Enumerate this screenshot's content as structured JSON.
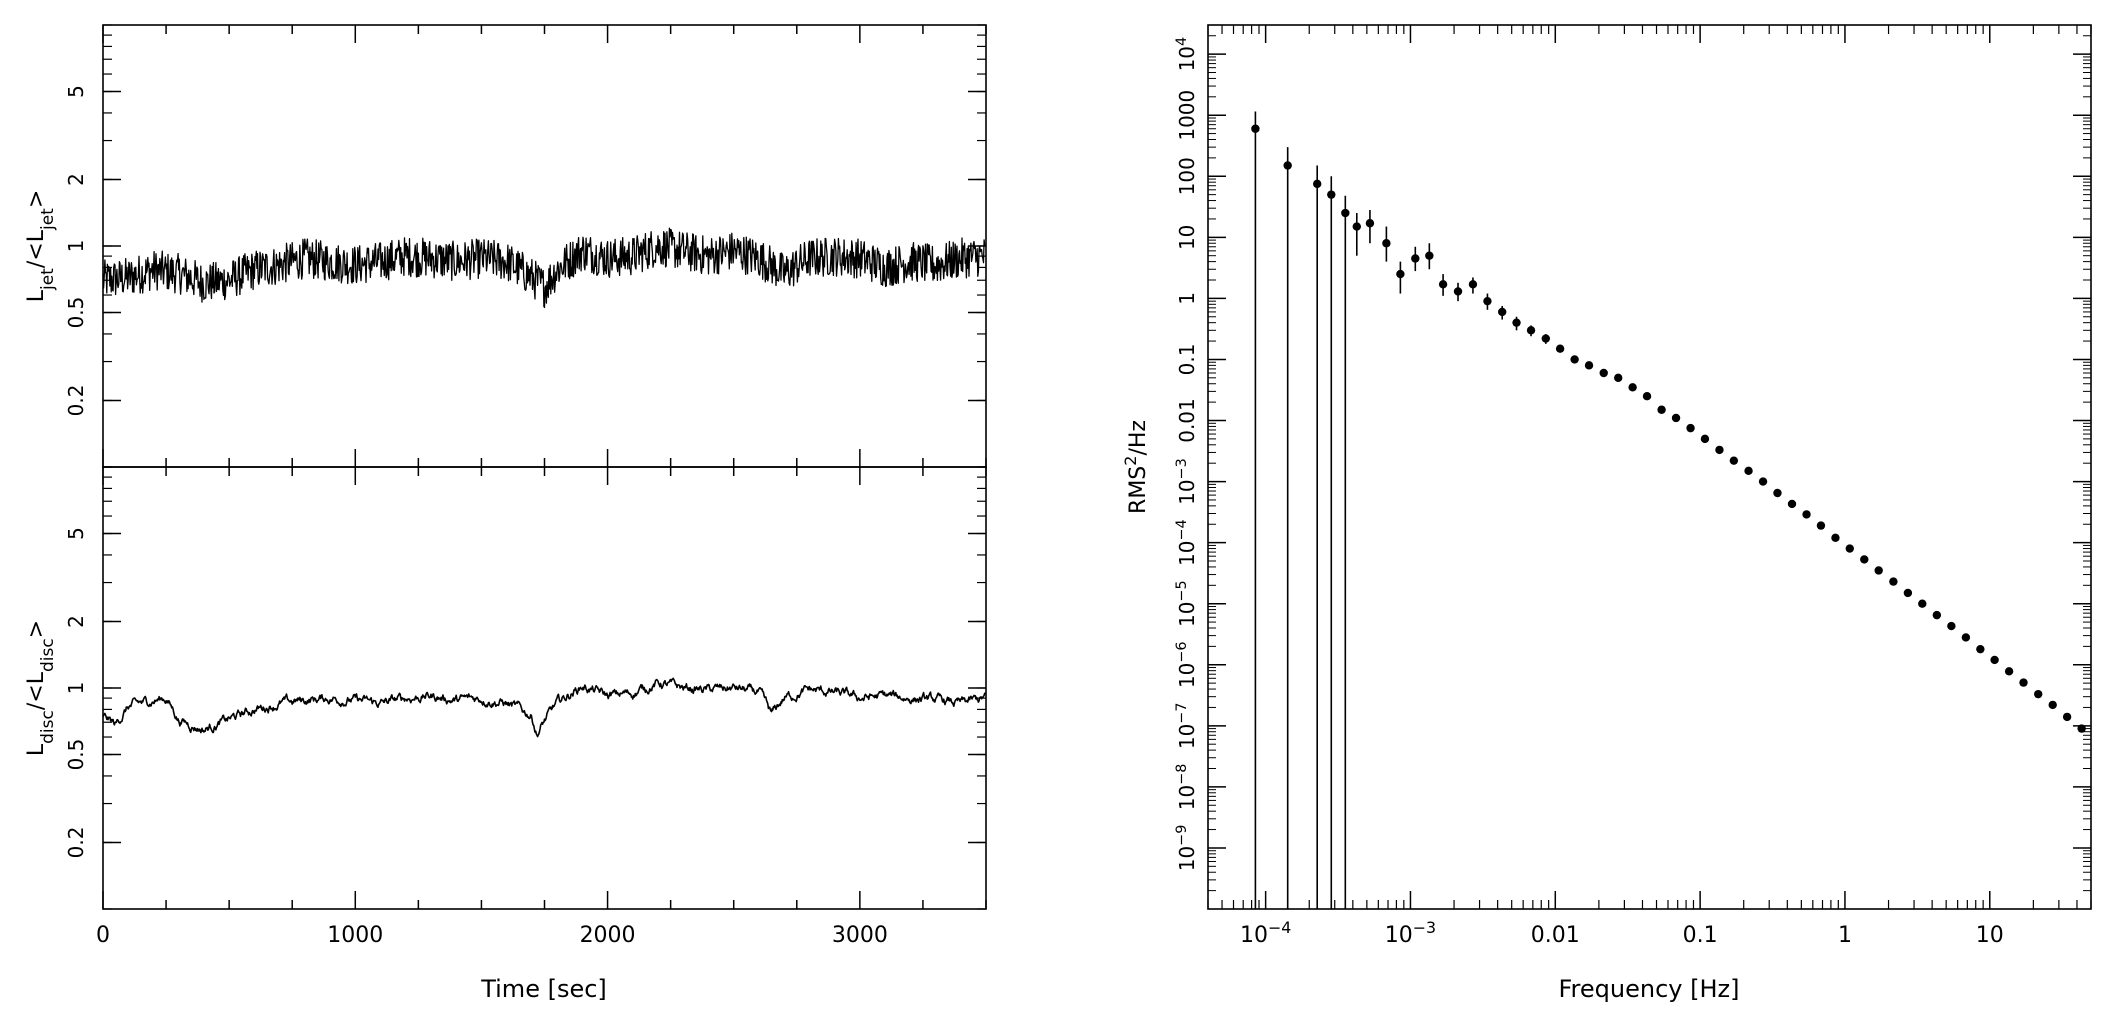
{
  "colors": {
    "ink": "#000000",
    "background": "#ffffff"
  },
  "left_panel": {
    "xlabel": "Time [sec]",
    "x_ticks": [
      "0",
      "1000",
      "2000",
      "3000"
    ],
    "top_ylabel_main": "L",
    "top_ylabel_sub1": "jet",
    "top_ylabel_mid": "/<L",
    "top_ylabel_sub2": "jet",
    "top_ylabel_end": ">",
    "bottom_ylabel_main": "L",
    "bottom_ylabel_sub1": "disc",
    "bottom_ylabel_mid": "/<L",
    "bottom_ylabel_sub2": "disc",
    "bottom_ylabel_end": ">",
    "y_ticks": [
      "0.2",
      "0.5",
      "1",
      "2",
      "5"
    ]
  },
  "right_panel": {
    "xlabel": "Frequency [Hz]",
    "ylabel_main": "RMS",
    "ylabel_sup": "2",
    "ylabel_end": "/Hz"
  },
  "chart_data": [
    {
      "type": "line",
      "panel": "top-left",
      "title": "",
      "xlabel": "",
      "ylabel": "Ljet/<Ljet>",
      "xlim": [
        0,
        3500
      ],
      "ylim": [
        0.1,
        10
      ],
      "y_scale": "log",
      "y_ticks": [
        0.2,
        0.5,
        1,
        2,
        5
      ],
      "series": [
        {
          "x": [
            0,
            100,
            200,
            300,
            400,
            500,
            600,
            700,
            800,
            900,
            1000,
            1100,
            1200,
            1300,
            1400,
            1500,
            1600,
            1700,
            1750,
            1800,
            1900,
            2000,
            2100,
            2200,
            2300,
            2400,
            2500,
            2600,
            2700,
            2800,
            2900,
            3000,
            3100,
            3200,
            3300,
            3400,
            3500
          ],
          "y": [
            0.7,
            0.72,
            0.78,
            0.75,
            0.68,
            0.7,
            0.78,
            0.82,
            0.88,
            0.85,
            0.82,
            0.85,
            0.9,
            0.88,
            0.85,
            0.88,
            0.85,
            0.72,
            0.65,
            0.78,
            0.95,
            0.88,
            0.9,
            1.0,
            0.95,
            0.9,
            0.95,
            0.88,
            0.75,
            0.88,
            0.9,
            0.88,
            0.8,
            0.85,
            0.82,
            0.88,
            0.9
          ],
          "noise_amplitude": "high"
        }
      ]
    },
    {
      "type": "line",
      "panel": "bottom-left",
      "title": "",
      "xlabel": "Time [sec]",
      "ylabel": "Ldisc/<Ldisc>",
      "xlim": [
        0,
        3500
      ],
      "ylim": [
        0.1,
        10
      ],
      "y_scale": "log",
      "y_ticks": [
        0.2,
        0.5,
        1,
        2,
        5
      ],
      "x_ticks": [
        0,
        1000,
        2000,
        3000
      ],
      "series": [
        {
          "x": [
            0,
            50,
            100,
            150,
            200,
            250,
            300,
            350,
            400,
            500,
            600,
            700,
            800,
            900,
            1000,
            1100,
            1200,
            1300,
            1400,
            1500,
            1600,
            1700,
            1720,
            1800,
            1900,
            2000,
            2100,
            2200,
            2300,
            2400,
            2500,
            2600,
            2650,
            2700,
            2800,
            2900,
            3000,
            3100,
            3200,
            3300,
            3400,
            3500
          ],
          "y": [
            0.75,
            0.68,
            0.82,
            0.85,
            0.88,
            0.9,
            0.72,
            0.68,
            0.65,
            0.72,
            0.8,
            0.85,
            0.88,
            0.9,
            0.88,
            0.85,
            0.9,
            0.92,
            0.88,
            0.9,
            0.85,
            0.75,
            0.62,
            0.85,
            1.02,
            0.92,
            0.95,
            1.05,
            1.0,
            0.98,
            1.0,
            0.95,
            0.75,
            0.9,
            0.98,
            0.95,
            0.9,
            0.92,
            0.9,
            0.88,
            0.85,
            0.9
          ]
        }
      ]
    },
    {
      "type": "scatter",
      "panel": "right",
      "title": "",
      "xlabel": "Frequency [Hz]",
      "ylabel": "RMS^2/Hz",
      "x_scale": "log",
      "y_scale": "log",
      "xlim": [
        4e-05,
        50
      ],
      "ylim": [
        1e-10,
        30000
      ],
      "x_ticks": [
        "10^-4",
        "10^-3",
        "0.01",
        "0.1",
        "1",
        "10"
      ],
      "y_ticks": [
        "10^-9",
        "10^-8",
        "10^-7",
        "10^-6",
        "10^-5",
        "10^-4",
        "10^-3",
        "0.01",
        "0.1",
        "1",
        "10",
        "100",
        "1000",
        "10^4"
      ],
      "series": [
        {
          "x": [
            8.5e-05,
            0.000142,
            0.000227,
            0.000284,
            0.000355,
            0.000426,
            0.000525,
            0.000682,
            0.000852,
            0.00108,
            0.00135,
            0.00168,
            0.00213,
            0.0027,
            0.0034,
            0.0043,
            0.0054,
            0.0068,
            0.0086,
            0.0108,
            0.0136,
            0.0171,
            0.0216,
            0.0272,
            0.0342,
            0.043,
            0.0542,
            0.0682,
            0.0859,
            0.108,
            0.136,
            0.171,
            0.216,
            0.272,
            0.342,
            0.431,
            0.543,
            0.683,
            0.86,
            1.08,
            1.36,
            1.71,
            2.16,
            2.72,
            3.42,
            4.31,
            5.43,
            6.84,
            8.61,
            10.8,
            13.6,
            17.1,
            21.6,
            27.2,
            34.2,
            43.1
          ],
          "y": [
            600,
            150,
            75,
            50,
            25,
            15,
            17,
            8,
            2.5,
            4.5,
            5,
            1.7,
            1.3,
            1.7,
            0.9,
            0.6,
            0.4,
            0.3,
            0.22,
            0.15,
            0.1,
            0.08,
            0.06,
            0.05,
            0.035,
            0.025,
            0.015,
            0.011,
            0.0075,
            0.005,
            0.0033,
            0.0022,
            0.0015,
            0.001,
            0.00065,
            0.00043,
            0.00029,
            0.00019,
            0.00012,
            8e-05,
            5.3e-05,
            3.5e-05,
            2.3e-05,
            1.5e-05,
            1e-05,
            6.5e-06,
            4.3e-06,
            2.8e-06,
            1.8e-06,
            1.2e-06,
            7.8e-07,
            5.1e-07,
            3.3e-07,
            2.2e-07,
            1.4e-07,
            9e-08
          ],
          "err_hi": [
            1150,
            300,
            150,
            100,
            48,
            25,
            28,
            15,
            4,
            7,
            8,
            2.5,
            1.8,
            2.2,
            1.2,
            0.75,
            0.5,
            0.36,
            0.26,
            0.17,
            0.11,
            0.088,
            0.065,
            0.054,
            0.038,
            0.027,
            0.016,
            0.0118,
            0.008,
            0.0053,
            0.0035,
            0.0023,
            0.0016,
            0.00105,
            0.00068,
            0.00045,
            0.0003,
            0.0002,
            0.000125,
            8.3e-05,
            5.5e-05,
            3.6e-05,
            2.4e-05,
            1.55e-05,
            1.03e-05,
            6.7e-06,
            4.4e-06,
            2.9e-06,
            1.85e-06,
            1.23e-06,
            8e-07,
            5.2e-07,
            3.4e-07,
            2.25e-07,
            1.43e-07,
            9.2e-08
          ],
          "err_lo": [
            1e-10,
            1e-10,
            1e-10,
            1e-10,
            1e-10,
            5,
            8,
            4,
            1.2,
            2.8,
            3,
            1.1,
            0.9,
            1.2,
            0.65,
            0.45,
            0.3,
            0.24,
            0.18,
            0.13,
            0.09,
            0.072,
            0.055,
            0.046,
            0.032,
            0.023,
            0.014,
            0.0102,
            0.007,
            0.0047,
            0.0031,
            0.0021,
            0.0014,
            0.00095,
            0.00062,
            0.00041,
            0.00028,
            0.00018,
            0.000115,
            7.7e-05,
            5.1e-05,
            3.4e-05,
            2.2e-05,
            1.45e-05,
            9.7e-06,
            6.3e-06,
            4.2e-06,
            2.7e-06,
            1.75e-06,
            1.17e-06,
            7.6e-07,
            5e-07,
            3.2e-07,
            2.15e-07,
            1.37e-07,
            8.8e-08
          ]
        }
      ]
    }
  ]
}
